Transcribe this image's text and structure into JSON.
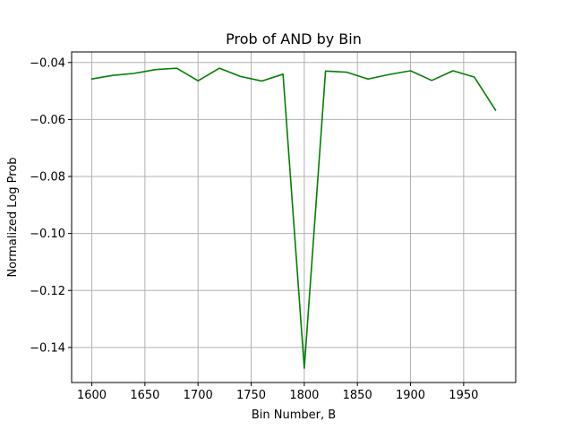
{
  "chart_data": {
    "type": "line",
    "title": "Prob of AND by Bin",
    "xlabel": "Bin Number, B",
    "ylabel": "Normalized Log Prob",
    "xlim": [
      1581,
      1999
    ],
    "ylim": [
      -0.1523,
      -0.0363
    ],
    "xticks": [
      1600,
      1650,
      1700,
      1750,
      1800,
      1850,
      1900,
      1950
    ],
    "yticks": [
      -0.04,
      -0.06,
      -0.08,
      -0.1,
      -0.12,
      -0.14
    ],
    "ytick_labels": [
      "−0.04",
      "−0.06",
      "−0.08",
      "−0.10",
      "−0.12",
      "−0.14"
    ],
    "grid": true,
    "series": [
      {
        "color": "#008000",
        "x": [
          1600,
          1620,
          1640,
          1660,
          1680,
          1700,
          1720,
          1740,
          1760,
          1780,
          1800,
          1820,
          1840,
          1860,
          1880,
          1900,
          1920,
          1940,
          1960,
          1980
        ],
        "y": [
          -0.0458,
          -0.0445,
          -0.0438,
          -0.0425,
          -0.042,
          -0.0464,
          -0.042,
          -0.0449,
          -0.0465,
          -0.0441,
          -0.1473,
          -0.043,
          -0.0434,
          -0.0458,
          -0.0442,
          -0.0429,
          -0.0463,
          -0.0429,
          -0.0451,
          -0.0567
        ]
      }
    ]
  }
}
